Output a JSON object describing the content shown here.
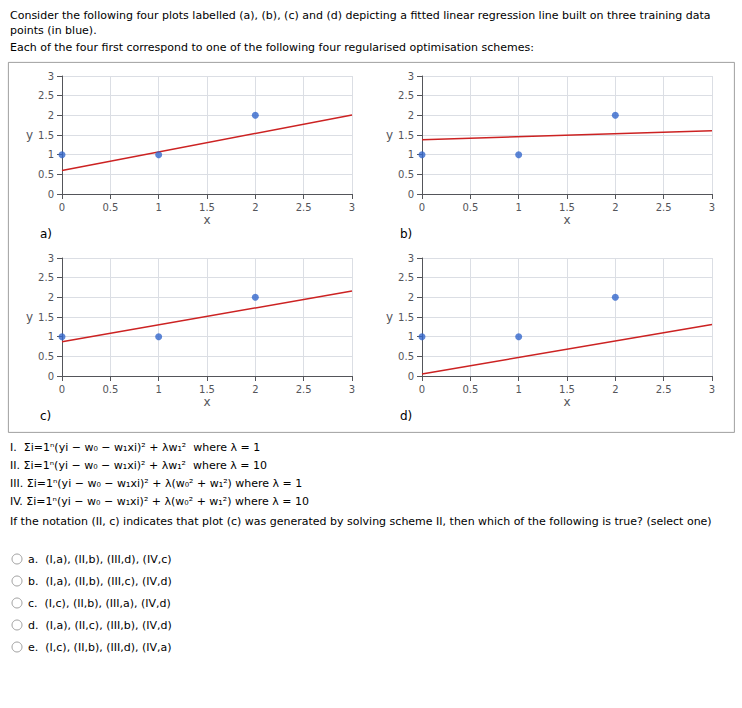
{
  "title": "Consider the following four plots labelled (a), (b), (c) and (d) depicting a fitted linear regression line built on three training data points (in blue).",
  "subtitle": "Each of the four first correspond to one of the following four regularised optimisation schemes:",
  "annotations": [
    "I.  Σi=1ⁿ(yi − w₀ − w₁xi)² + λw₁²  where λ = 1",
    "II. Σi=1ⁿ(yi − w₀ − w₁xi)² + λw₁²  where λ = 10",
    "III. Σi=1ⁿ(yi − w₀ − w₁xi)² + λ(w₀² + w₁²) where λ = 1",
    "IV. Σi=1ⁿ(yi − w₀ − w₁xi)² + λ(w₀² + w₁²) where λ = 10",
    "If the notation (II, c) indicates that plot (c) was generated by solving scheme II, then which of the following is true? (select one)",
    "a.  (I,a), (II,b), (III,d), (IV,c)",
    "b.  (I,a), (II,b), (III,c), (IV,d)",
    "c.  (I,c), (II,b), (III,a), (IV,d)",
    "d.  (I,a), (II,c), (III,b), (IV,d)",
    "e.  (I,c), (II,b), (III,d), (IV,a)"
  ],
  "chart_data": [
    {
      "type": "scatter",
      "title": "a)",
      "xlabel": "x",
      "ylabel": "y",
      "xlim": [
        0,
        3
      ],
      "ylim": [
        0,
        3
      ],
      "xticks": [
        0,
        0.5,
        1,
        1.5,
        2,
        2.5,
        3
      ],
      "yticks": [
        0,
        0.5,
        1,
        1.5,
        2,
        2.5,
        3
      ],
      "grid": true,
      "series": [
        {
          "type": "scatter",
          "color": "#3366cc",
          "x": [
            0,
            1,
            2
          ],
          "values": [
            1,
            1,
            2
          ]
        },
        {
          "type": "line",
          "color": "#cc2222",
          "x": [
            0,
            3
          ],
          "values": [
            0.6,
            2.01
          ]
        }
      ]
    },
    {
      "type": "scatter",
      "title": "b)",
      "xlabel": "x",
      "ylabel": "y",
      "xlim": [
        0,
        3
      ],
      "ylim": [
        0,
        3
      ],
      "xticks": [
        0,
        0.5,
        1,
        1.5,
        2,
        2.5,
        3
      ],
      "yticks": [
        0,
        0.5,
        1,
        1.5,
        2,
        2.5,
        3
      ],
      "grid": true,
      "series": [
        {
          "type": "scatter",
          "color": "#3366cc",
          "x": [
            0,
            1,
            2
          ],
          "values": [
            1,
            1,
            2
          ]
        },
        {
          "type": "line",
          "color": "#cc2222",
          "x": [
            0,
            3
          ],
          "values": [
            1.38,
            1.605
          ]
        }
      ]
    },
    {
      "type": "scatter",
      "title": "c)",
      "xlabel": "x",
      "ylabel": "y",
      "xlim": [
        0,
        3
      ],
      "ylim": [
        0,
        3
      ],
      "xticks": [
        0,
        0.5,
        1,
        1.5,
        2,
        2.5,
        3
      ],
      "yticks": [
        0,
        0.5,
        1,
        1.5,
        2,
        2.5,
        3
      ],
      "grid": true,
      "series": [
        {
          "type": "scatter",
          "color": "#3366cc",
          "x": [
            0,
            1,
            2
          ],
          "values": [
            1,
            1,
            2
          ]
        },
        {
          "type": "line",
          "color": "#cc2222",
          "x": [
            0,
            3
          ],
          "values": [
            0.87,
            2.16
          ]
        }
      ]
    },
    {
      "type": "scatter",
      "title": "d)",
      "xlabel": "x",
      "ylabel": "y",
      "xlim": [
        0,
        3
      ],
      "ylim": [
        0,
        3
      ],
      "xticks": [
        0,
        0.5,
        1,
        1.5,
        2,
        2.5,
        3
      ],
      "yticks": [
        0,
        0.5,
        1,
        1.5,
        2,
        2.5,
        3
      ],
      "grid": true,
      "series": [
        {
          "type": "scatter",
          "color": "#3366cc",
          "x": [
            0,
            1,
            2
          ],
          "values": [
            1,
            1,
            2
          ]
        },
        {
          "type": "line",
          "color": "#cc2222",
          "x": [
            0,
            3
          ],
          "values": [
            0.05,
            1.31
          ]
        }
      ]
    }
  ]
}
